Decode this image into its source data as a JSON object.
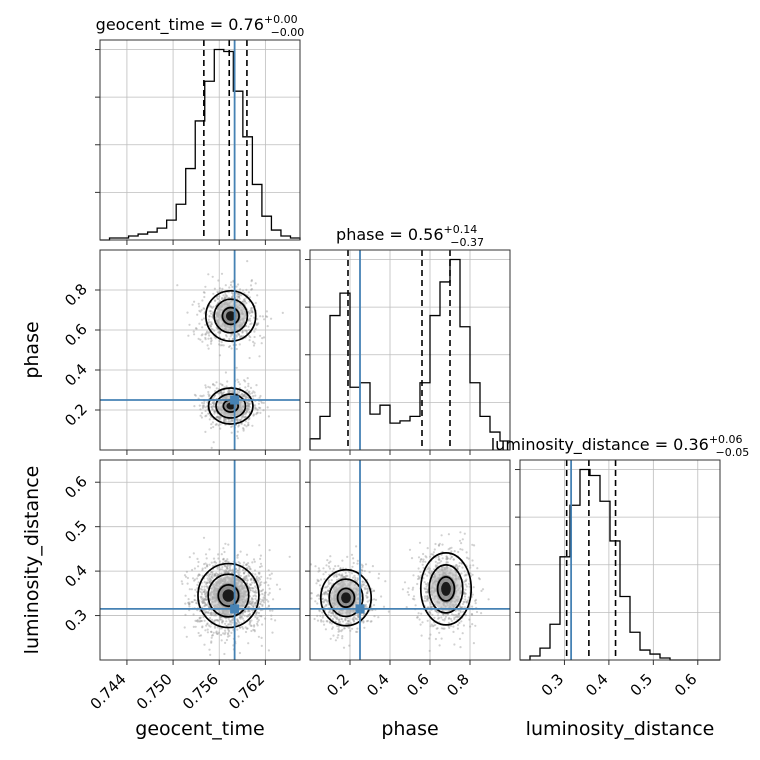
{
  "chart_data": {
    "type": "corner",
    "parameters": [
      "geocent_time",
      "phase",
      "luminosity_distance"
    ],
    "axis_labels": {
      "geocent_time": "geocent_time",
      "phase": "phase",
      "luminosity_distance": "luminosity_distance"
    },
    "titles": {
      "geocent_time": {
        "name": "geocent_time",
        "median": "0.76",
        "plus": "+0.00",
        "minus": "−0.00"
      },
      "phase": {
        "name": "phase",
        "median": "0.56",
        "plus": "+0.14",
        "minus": "−0.37"
      },
      "luminosity_distance": {
        "name": "luminosity_distance",
        "median": "0.36",
        "plus": "+0.06",
        "minus": "−0.05"
      }
    },
    "ranges": {
      "geocent_time": [
        0.7405,
        0.7665
      ],
      "phase": [
        0.0,
        1.0
      ],
      "luminosity_distance": [
        0.2,
        0.65
      ]
    },
    "ticks": {
      "geocent_time": [
        "0.744",
        "0.750",
        "0.756",
        "0.762"
      ],
      "phase": [
        "0.2",
        "0.4",
        "0.6",
        "0.8"
      ],
      "luminosity_distance": [
        "0.3",
        "0.4",
        "0.5",
        "0.6"
      ]
    },
    "truths": {
      "geocent_time": 0.758,
      "phase": 0.25,
      "luminosity_distance": 0.315
    },
    "quantiles": {
      "geocent_time": [
        0.754,
        0.7573,
        0.7596
      ],
      "phase": [
        0.19,
        0.56,
        0.7
      ],
      "luminosity_distance": [
        0.305,
        0.355,
        0.415
      ]
    },
    "histograms": {
      "geocent_time": [
        0,
        1,
        1,
        2,
        3,
        4,
        6,
        10,
        18,
        36,
        60,
        80,
        96,
        95,
        75,
        52,
        28,
        12,
        5,
        2,
        1
      ],
      "phase": [
        5,
        15,
        60,
        70,
        28,
        30,
        16,
        20,
        12,
        13,
        15,
        30,
        60,
        75,
        85,
        55,
        30,
        15,
        8,
        4
      ],
      "luminosity_distance": [
        0,
        2,
        6,
        18,
        52,
        78,
        96,
        93,
        80,
        60,
        32,
        14,
        5,
        3,
        1,
        0,
        0,
        0,
        0,
        0
      ]
    },
    "truth_line_color": "#4682b4",
    "quantile_line_style": "dashed",
    "grid": true
  }
}
